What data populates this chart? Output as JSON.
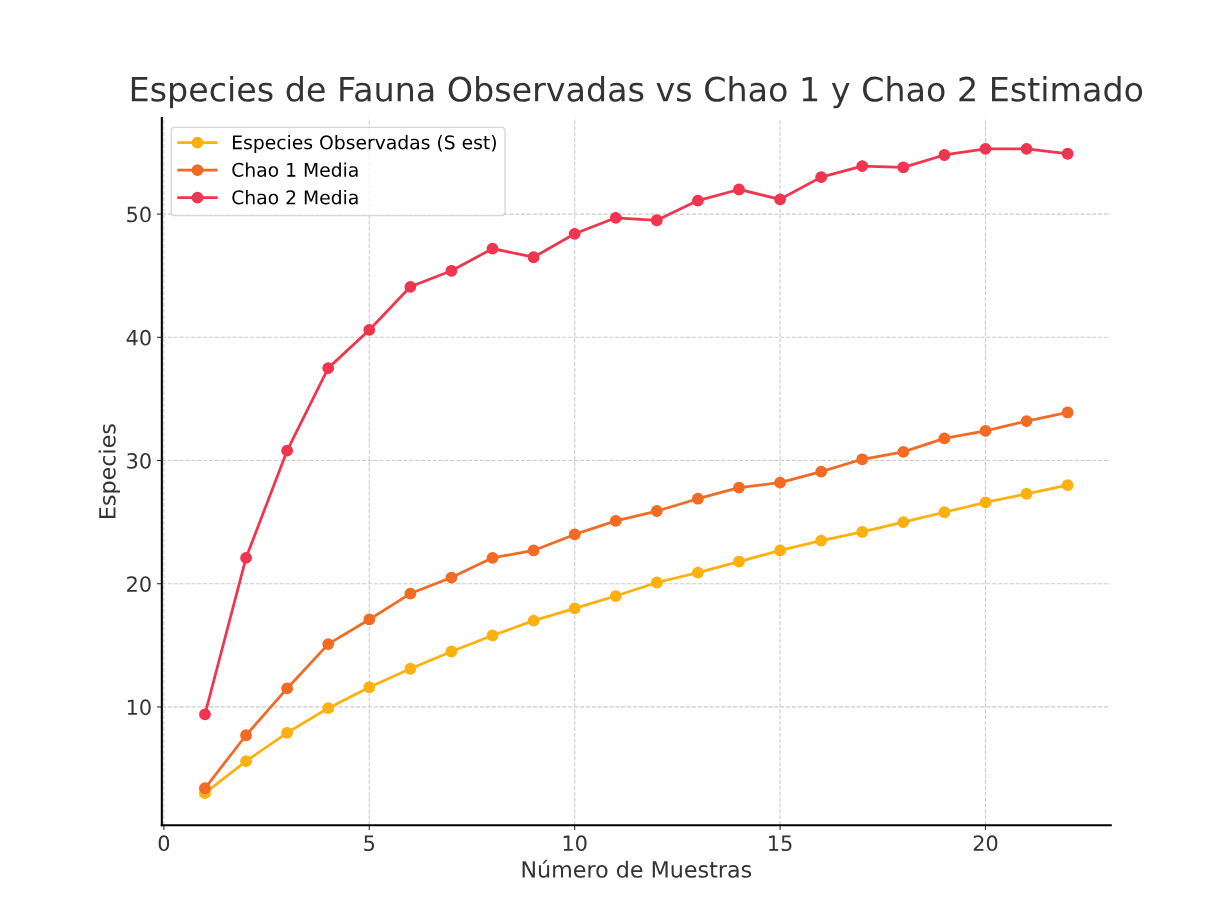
{
  "chart_data": {
    "type": "line",
    "title": "Especies de Fauna Observadas vs Chao 1 y Chao 2 Estimado",
    "xlabel": "Número de Muestras",
    "ylabel": "Especies",
    "x": [
      1,
      2,
      3,
      4,
      5,
      6,
      7,
      8,
      9,
      10,
      11,
      12,
      13,
      14,
      15,
      16,
      17,
      18,
      19,
      20,
      21,
      22
    ],
    "series": [
      {
        "name": "Especies Observadas (S est)",
        "color": "#fdb10f",
        "values": [
          3.0,
          5.6,
          7.9,
          9.9,
          11.6,
          13.1,
          14.5,
          15.8,
          17.0,
          18.0,
          19.0,
          20.1,
          20.9,
          21.8,
          22.7,
          23.5,
          24.2,
          25.0,
          25.8,
          26.6,
          27.3,
          28.0
        ]
      },
      {
        "name": "Chao 1 Media",
        "color": "#f26b24",
        "values": [
          3.4,
          7.7,
          11.5,
          15.1,
          17.1,
          19.2,
          20.5,
          22.1,
          22.7,
          24.0,
          25.1,
          25.9,
          26.9,
          27.8,
          28.2,
          29.1,
          30.1,
          30.7,
          31.8,
          32.4,
          33.2,
          33.9
        ]
      },
      {
        "name": "Chao 2 Media",
        "color": "#f0354f",
        "values": [
          9.4,
          22.1,
          30.8,
          37.5,
          40.6,
          44.1,
          45.4,
          47.2,
          46.5,
          48.4,
          49.7,
          49.5,
          51.1,
          52.0,
          51.2,
          53.0,
          53.9,
          53.8,
          54.8,
          55.3,
          55.3,
          54.9
        ]
      }
    ],
    "xlim": [
      -0.05,
      23.05
    ],
    "ylim": [
      0.4,
      57.8
    ],
    "xticks": [
      0,
      5,
      10,
      15,
      20
    ],
    "yticks": [
      10,
      20,
      30,
      40,
      50
    ],
    "grid": true,
    "legend": "top left",
    "marker": "circle",
    "line_style": "solid"
  }
}
